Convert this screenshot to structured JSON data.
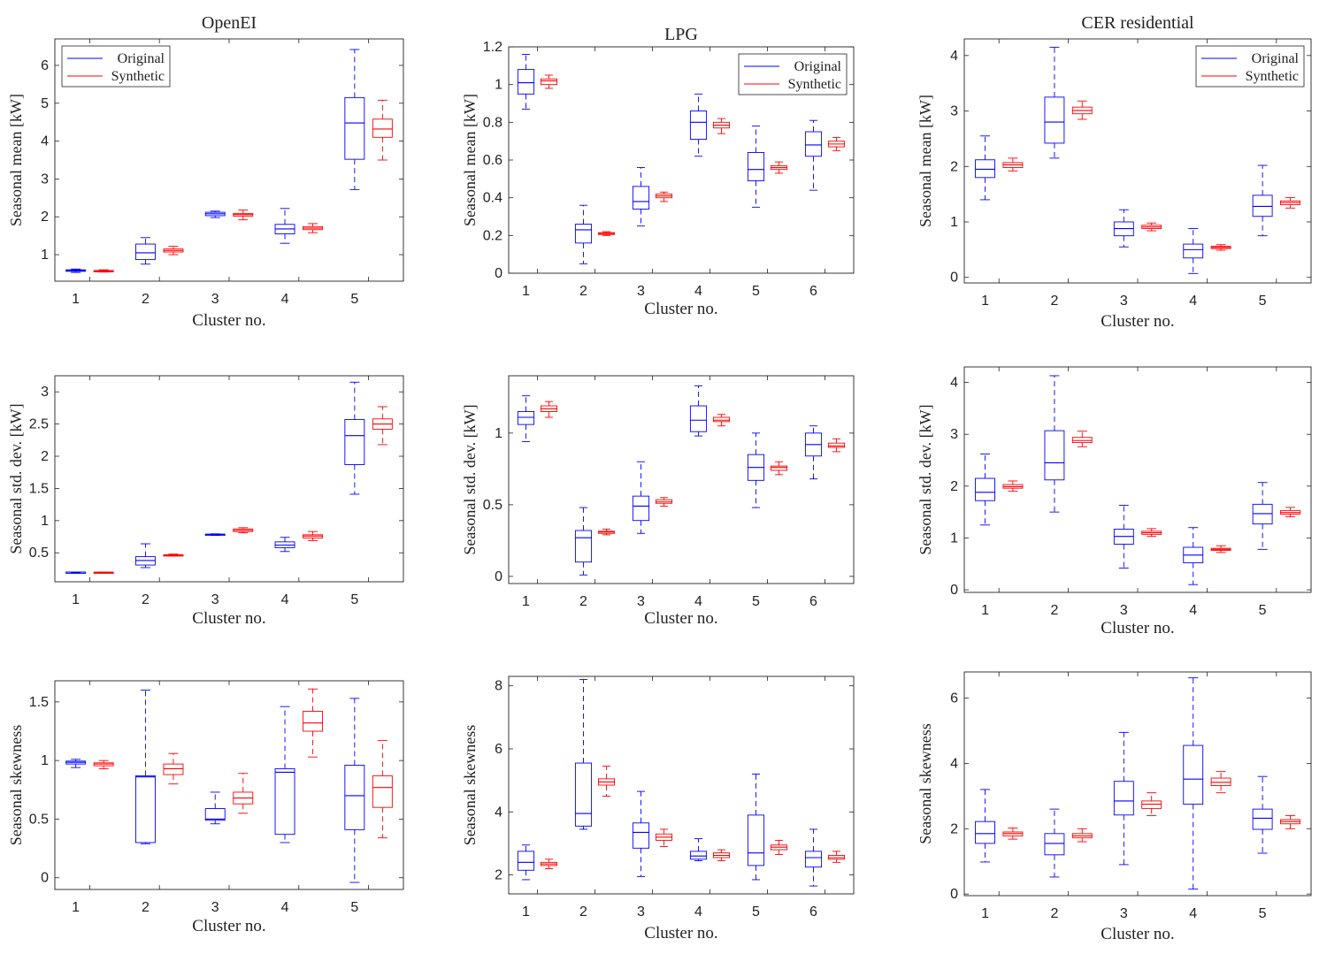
{
  "colors": {
    "original": "#0000ff",
    "synthetic": "#ff0000",
    "axis": "#222222"
  },
  "chart_data": [
    {
      "type": "box",
      "dataset": "OpenEI",
      "title": "OpenEI",
      "xlabel": "Cluster no.",
      "ylabel": "Seasonal mean [kW]",
      "categories": [
        "1",
        "2",
        "3",
        "4",
        "5"
      ],
      "ylim": [
        0.3,
        6.7
      ],
      "yticks": [
        1,
        2,
        3,
        4,
        5,
        6
      ],
      "ytick_labels": [
        "1",
        "2",
        "3",
        "4",
        "5",
        "6"
      ],
      "legend": {
        "entries": [
          "Original",
          "Synthetic"
        ],
        "placement": "top-left"
      },
      "series": [
        {
          "name": "Original",
          "color": "#0000ff",
          "boxes": [
            [
              0.53,
              0.56,
              0.58,
              0.6,
              0.62
            ],
            [
              0.75,
              0.87,
              1.05,
              1.28,
              1.45
            ],
            [
              1.98,
              2.03,
              2.08,
              2.12,
              2.15
            ],
            [
              1.3,
              1.55,
              1.68,
              1.8,
              2.22
            ],
            [
              2.72,
              3.52,
              4.48,
              5.15,
              6.42
            ]
          ]
        },
        {
          "name": "Synthetic",
          "color": "#ff0000",
          "boxes": [
            [
              0.54,
              0.56,
              0.57,
              0.58,
              0.6
            ],
            [
              1.0,
              1.07,
              1.11,
              1.15,
              1.22
            ],
            [
              1.92,
              2.02,
              2.06,
              2.09,
              2.18
            ],
            [
              1.58,
              1.66,
              1.7,
              1.74,
              1.82
            ],
            [
              3.5,
              4.1,
              4.32,
              4.58,
              5.08
            ]
          ]
        }
      ]
    },
    {
      "type": "box",
      "dataset": "LPG",
      "title": "LPG",
      "xlabel": "Cluster no.",
      "ylabel": "Seasonal mean [kW]",
      "categories": [
        "1",
        "2",
        "3",
        "4",
        "5",
        "6"
      ],
      "ylim": [
        0,
        1.2
      ],
      "yticks": [
        0,
        0.2,
        0.4,
        0.6,
        0.8,
        1,
        1.2
      ],
      "ytick_labels": [
        "0",
        "0.2",
        "0.4",
        "0.6",
        "0.8",
        "1",
        "1.2"
      ],
      "legend": {
        "entries": [
          "Original",
          "Synthetic"
        ],
        "placement": "top-right"
      },
      "series": [
        {
          "name": "Original",
          "color": "#0000ff",
          "boxes": [
            [
              0.87,
              0.95,
              1.01,
              1.08,
              1.16
            ],
            [
              0.05,
              0.16,
              0.23,
              0.26,
              0.36
            ],
            [
              0.25,
              0.34,
              0.38,
              0.46,
              0.56
            ],
            [
              0.62,
              0.71,
              0.8,
              0.86,
              0.95
            ],
            [
              0.35,
              0.49,
              0.55,
              0.64,
              0.78
            ],
            [
              0.44,
              0.62,
              0.68,
              0.75,
              0.81
            ]
          ]
        },
        {
          "name": "Synthetic",
          "color": "#ff0000",
          "boxes": [
            [
              0.98,
              1.0,
              1.02,
              1.03,
              1.05
            ],
            [
              0.2,
              0.205,
              0.21,
              0.215,
              0.22
            ],
            [
              0.38,
              0.4,
              0.41,
              0.42,
              0.43
            ],
            [
              0.74,
              0.77,
              0.785,
              0.8,
              0.82
            ],
            [
              0.53,
              0.55,
              0.56,
              0.57,
              0.59
            ],
            [
              0.65,
              0.67,
              0.685,
              0.7,
              0.72
            ]
          ]
        }
      ]
    },
    {
      "type": "box",
      "dataset": "CER residential",
      "title": "CER residential",
      "xlabel": "Cluster no.",
      "ylabel": "Seasonal mean [kW]",
      "categories": [
        "1",
        "2",
        "3",
        "4",
        "5"
      ],
      "ylim": [
        -0.1,
        4.3
      ],
      "yticks": [
        0,
        1,
        2,
        3,
        4
      ],
      "ytick_labels": [
        "0",
        "1",
        "2",
        "3",
        "4"
      ],
      "legend": {
        "entries": [
          "Original",
          "Synthetic"
        ],
        "placement": "top-right"
      },
      "series": [
        {
          "name": "Original",
          "color": "#0000ff",
          "boxes": [
            [
              1.4,
              1.8,
              1.95,
              2.12,
              2.55
            ],
            [
              2.15,
              2.42,
              2.8,
              3.25,
              4.15
            ],
            [
              0.55,
              0.75,
              0.88,
              1.0,
              1.22
            ],
            [
              0.07,
              0.35,
              0.5,
              0.6,
              0.88
            ],
            [
              0.75,
              1.1,
              1.28,
              1.48,
              2.02
            ]
          ]
        },
        {
          "name": "Synthetic",
          "color": "#ff0000",
          "boxes": [
            [
              1.92,
              1.98,
              2.03,
              2.07,
              2.15
            ],
            [
              2.85,
              2.95,
              3.01,
              3.07,
              3.18
            ],
            [
              0.84,
              0.88,
              0.91,
              0.94,
              0.98
            ],
            [
              0.49,
              0.52,
              0.54,
              0.56,
              0.59
            ],
            [
              1.25,
              1.31,
              1.35,
              1.38,
              1.44
            ]
          ]
        }
      ]
    },
    {
      "type": "box",
      "dataset": "OpenEI",
      "xlabel": "Cluster no.",
      "ylabel": "Seasonal std. dev. [kW]",
      "categories": [
        "1",
        "2",
        "3",
        "4",
        "5"
      ],
      "ylim": [
        0.05,
        3.25
      ],
      "yticks": [
        0.5,
        1,
        1.5,
        2,
        2.5,
        3
      ],
      "ytick_labels": [
        "0.5",
        "1",
        "1.5",
        "2",
        "2.5",
        "3"
      ],
      "series": [
        {
          "name": "Original",
          "color": "#0000ff",
          "boxes": [
            [
              0.19,
              0.19,
              0.2,
              0.2,
              0.2
            ],
            [
              0.27,
              0.31,
              0.38,
              0.44,
              0.64
            ],
            [
              0.775,
              0.78,
              0.785,
              0.79,
              0.795
            ],
            [
              0.52,
              0.58,
              0.62,
              0.67,
              0.74
            ],
            [
              1.41,
              1.87,
              2.32,
              2.57,
              3.15
            ]
          ]
        },
        {
          "name": "Synthetic",
          "color": "#ff0000",
          "boxes": [
            [
              0.19,
              0.19,
              0.195,
              0.2,
              0.2
            ],
            [
              0.45,
              0.455,
              0.46,
              0.47,
              0.48
            ],
            [
              0.81,
              0.83,
              0.85,
              0.87,
              0.89
            ],
            [
              0.69,
              0.73,
              0.76,
              0.78,
              0.83
            ],
            [
              2.18,
              2.42,
              2.5,
              2.58,
              2.77
            ]
          ]
        }
      ]
    },
    {
      "type": "box",
      "dataset": "LPG",
      "xlabel": "Cluster no.",
      "ylabel": "Seasonal std. dev. [kW]",
      "categories": [
        "1",
        "2",
        "3",
        "4",
        "5",
        "6"
      ],
      "ylim": [
        -0.05,
        1.4
      ],
      "yticks": [
        0,
        0.5,
        1
      ],
      "ytick_labels": [
        "0",
        "0.5",
        "1"
      ],
      "series": [
        {
          "name": "Original",
          "color": "#0000ff",
          "boxes": [
            [
              0.94,
              1.06,
              1.11,
              1.15,
              1.26
            ],
            [
              0.01,
              0.1,
              0.27,
              0.32,
              0.48
            ],
            [
              0.3,
              0.39,
              0.49,
              0.56,
              0.8
            ],
            [
              0.98,
              1.01,
              1.09,
              1.19,
              1.33
            ],
            [
              0.48,
              0.67,
              0.76,
              0.85,
              1.0
            ],
            [
              0.68,
              0.84,
              0.92,
              1.0,
              1.05
            ]
          ]
        },
        {
          "name": "Synthetic",
          "color": "#ff0000",
          "boxes": [
            [
              1.11,
              1.15,
              1.17,
              1.19,
              1.22
            ],
            [
              0.29,
              0.3,
              0.31,
              0.315,
              0.33
            ],
            [
              0.49,
              0.51,
              0.52,
              0.535,
              0.55
            ],
            [
              1.05,
              1.08,
              1.09,
              1.11,
              1.13
            ],
            [
              0.71,
              0.74,
              0.76,
              0.77,
              0.8
            ],
            [
              0.87,
              0.9,
              0.91,
              0.93,
              0.96
            ]
          ]
        }
      ]
    },
    {
      "type": "box",
      "dataset": "CER residential",
      "xlabel": "Cluster no.",
      "ylabel": "Seasonal std. dev. [kW]",
      "categories": [
        "1",
        "2",
        "3",
        "4",
        "5"
      ],
      "ylim": [
        -0.05,
        4.3
      ],
      "yticks": [
        0,
        1,
        2,
        3,
        4
      ],
      "ytick_labels": [
        "0",
        "1",
        "2",
        "3",
        "4"
      ],
      "series": [
        {
          "name": "Original",
          "color": "#0000ff",
          "boxes": [
            [
              1.25,
              1.72,
              1.88,
              2.15,
              2.62
            ],
            [
              1.5,
              2.12,
              2.45,
              3.07,
              4.13
            ],
            [
              0.42,
              0.88,
              1.03,
              1.17,
              1.63
            ],
            [
              0.1,
              0.52,
              0.67,
              0.82,
              1.2
            ],
            [
              0.78,
              1.27,
              1.47,
              1.65,
              2.07
            ]
          ]
        },
        {
          "name": "Synthetic",
          "color": "#ff0000",
          "boxes": [
            [
              1.9,
              1.96,
              1.99,
              2.03,
              2.1
            ],
            [
              2.76,
              2.84,
              2.88,
              2.94,
              3.06
            ],
            [
              1.03,
              1.07,
              1.1,
              1.13,
              1.18
            ],
            [
              0.72,
              0.76,
              0.78,
              0.8,
              0.85
            ],
            [
              1.41,
              1.46,
              1.49,
              1.53,
              1.59
            ]
          ]
        }
      ]
    },
    {
      "type": "box",
      "dataset": "OpenEI",
      "xlabel": "Cluster no.",
      "ylabel": "Seasonal skewness",
      "categories": [
        "1",
        "2",
        "3",
        "4",
        "5"
      ],
      "ylim": [
        -0.1,
        1.68
      ],
      "yticks": [
        0,
        0.5,
        1,
        1.5
      ],
      "ytick_labels": [
        "0",
        "0.5",
        "1",
        "1.5"
      ],
      "series": [
        {
          "name": "Original",
          "color": "#0000ff",
          "boxes": [
            [
              0.94,
              0.97,
              0.985,
              0.995,
              1.01
            ],
            [
              0.29,
              0.3,
              0.86,
              0.87,
              1.6
            ],
            [
              0.46,
              0.49,
              0.5,
              0.59,
              0.73
            ],
            [
              0.3,
              0.37,
              0.9,
              0.93,
              1.46
            ],
            [
              -0.04,
              0.41,
              0.7,
              0.96,
              1.53
            ]
          ]
        },
        {
          "name": "Synthetic",
          "color": "#ff0000",
          "boxes": [
            [
              0.93,
              0.955,
              0.97,
              0.98,
              1.0
            ],
            [
              0.8,
              0.88,
              0.93,
              0.97,
              1.06
            ],
            [
              0.55,
              0.63,
              0.68,
              0.73,
              0.89
            ],
            [
              1.03,
              1.25,
              1.32,
              1.42,
              1.61
            ],
            [
              0.34,
              0.6,
              0.77,
              0.87,
              1.17
            ]
          ]
        }
      ]
    },
    {
      "type": "box",
      "dataset": "LPG",
      "xlabel": "Cluster no.",
      "ylabel": "Seasonal skewness",
      "categories": [
        "1",
        "2",
        "3",
        "4",
        "5",
        "6"
      ],
      "ylim": [
        1.4,
        8.3
      ],
      "yticks": [
        2,
        4,
        6,
        8
      ],
      "ytick_labels": [
        "2",
        "4",
        "6",
        "8"
      ],
      "series": [
        {
          "name": "Original",
          "color": "#0000ff",
          "boxes": [
            [
              1.85,
              2.15,
              2.4,
              2.75,
              2.95
            ],
            [
              3.45,
              3.55,
              3.95,
              5.55,
              8.2
            ],
            [
              1.95,
              2.85,
              3.35,
              3.65,
              4.65
            ],
            [
              2.45,
              2.5,
              2.6,
              2.75,
              3.15
            ],
            [
              1.85,
              2.3,
              2.7,
              3.9,
              5.2
            ],
            [
              1.65,
              2.25,
              2.55,
              2.75,
              3.45
            ]
          ]
        },
        {
          "name": "Synthetic",
          "color": "#ff0000",
          "boxes": [
            [
              2.2,
              2.3,
              2.35,
              2.4,
              2.5
            ],
            [
              4.5,
              4.85,
              4.95,
              5.05,
              5.45
            ],
            [
              2.9,
              3.1,
              3.2,
              3.3,
              3.45
            ],
            [
              2.45,
              2.55,
              2.62,
              2.7,
              2.8
            ],
            [
              2.65,
              2.8,
              2.88,
              2.95,
              3.1
            ],
            [
              2.4,
              2.5,
              2.55,
              2.62,
              2.75
            ]
          ]
        }
      ]
    },
    {
      "type": "box",
      "dataset": "CER residential",
      "xlabel": "Cluster no.",
      "ylabel": "Seasonal skewness",
      "categories": [
        "1",
        "2",
        "3",
        "4",
        "5"
      ],
      "ylim": [
        -0.05,
        6.8
      ],
      "yticks": [
        0,
        2,
        4,
        6
      ],
      "ytick_labels": [
        "0",
        "2",
        "4",
        "6"
      ],
      "series": [
        {
          "name": "Original",
          "color": "#0000ff",
          "boxes": [
            [
              0.98,
              1.55,
              1.85,
              2.22,
              3.2
            ],
            [
              0.52,
              1.2,
              1.55,
              1.85,
              2.6
            ],
            [
              0.9,
              2.42,
              2.85,
              3.45,
              4.95
            ],
            [
              0.15,
              2.75,
              3.52,
              4.55,
              6.62
            ],
            [
              1.25,
              1.98,
              2.32,
              2.6,
              3.6
            ]
          ]
        },
        {
          "name": "Synthetic",
          "color": "#ff0000",
          "boxes": [
            [
              1.68,
              1.78,
              1.85,
              1.9,
              2.02
            ],
            [
              1.6,
              1.72,
              1.78,
              1.85,
              2.0
            ],
            [
              2.4,
              2.62,
              2.75,
              2.85,
              3.1
            ],
            [
              3.1,
              3.32,
              3.42,
              3.55,
              3.75
            ],
            [
              2.0,
              2.15,
              2.22,
              2.28,
              2.4
            ]
          ]
        }
      ]
    }
  ]
}
